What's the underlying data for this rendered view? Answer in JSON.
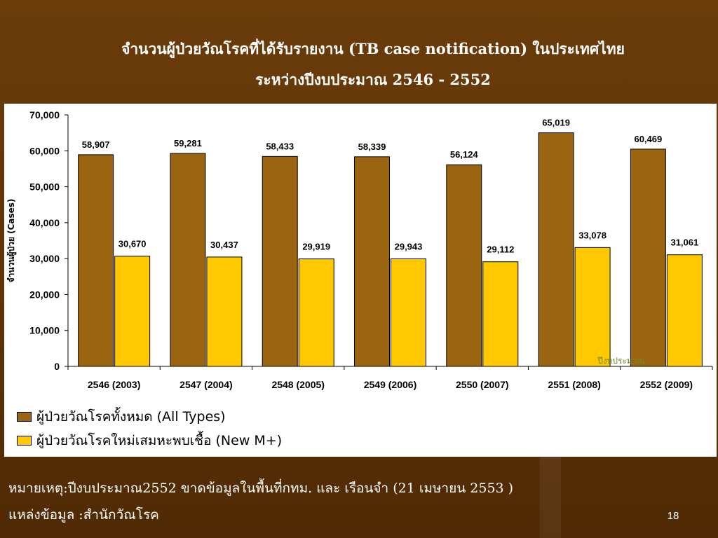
{
  "title": {
    "line1": "จำนวนผู้ป่วยวัณโรคที่ได้รับรายงาน (TB case notification) ในประเทศไทย",
    "line2": "ระหว่างปีงบประมาณ 2546 - 2552"
  },
  "footnote": {
    "line1": "หมายเหตุ:ปีงบประมาณ2552  ขาดข้อมูลในพื้นที่กทม. และ เรือนจำ (21 เมษายน 2553 )",
    "line2": "แหล่งข้อมูล :สำนักวัณโรค"
  },
  "page_number": "18",
  "colors": {
    "all_types": "#9b6410",
    "new_m": "#ffc800",
    "background": "#5e3306"
  },
  "chart_data": {
    "type": "bar",
    "title": "",
    "xlabel": "ปีงบประมาณ",
    "ylabel": "จำนวนผู้ป่วย (Cases)",
    "ylim": [
      0,
      70000
    ],
    "yticks": [
      "0",
      "10,000",
      "20,000",
      "30,000",
      "40,000",
      "50,000",
      "60,000",
      "70,000"
    ],
    "ytick_values": [
      0,
      10000,
      20000,
      30000,
      40000,
      50000,
      60000,
      70000
    ],
    "grid": false,
    "legend_position": "bottom-left",
    "categories": [
      "2546 (2003)",
      "2547 (2004)",
      "2548 (2005)",
      "2549 (2006)",
      "2550 (2007)",
      "2551 (2008)",
      "2552 (2009)"
    ],
    "series": [
      {
        "name": "ผู้ป่วยวัณโรคทั้งหมด (All Types)",
        "values": [
          58907,
          59281,
          58433,
          58339,
          56124,
          65019,
          60469
        ],
        "labels": [
          "58,907",
          "59,281",
          "58,433",
          "58,339",
          "56,124",
          "65,019",
          "60,469"
        ]
      },
      {
        "name": "ผู้ป่วยวัณโรคใหม่เสมหะพบเชื้อ (New M+)",
        "values": [
          30670,
          30437,
          29919,
          29943,
          29112,
          33078,
          31061
        ],
        "labels": [
          "30,670",
          "30,437",
          "29,919",
          "29,943",
          "29,112",
          "33,078",
          "31,061"
        ]
      }
    ]
  }
}
